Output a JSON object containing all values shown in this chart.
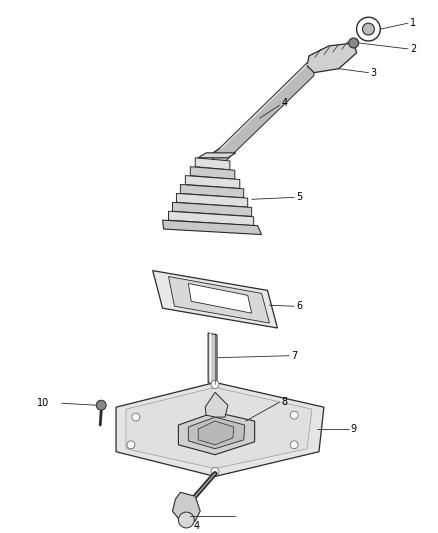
{
  "background_color": "#ffffff",
  "figure_width": 4.38,
  "figure_height": 5.33,
  "dpi": 100,
  "line_color": "#2a2a2a",
  "fill_light": "#e8e8e8",
  "fill_mid": "#cccccc",
  "fill_dark": "#aaaaaa"
}
